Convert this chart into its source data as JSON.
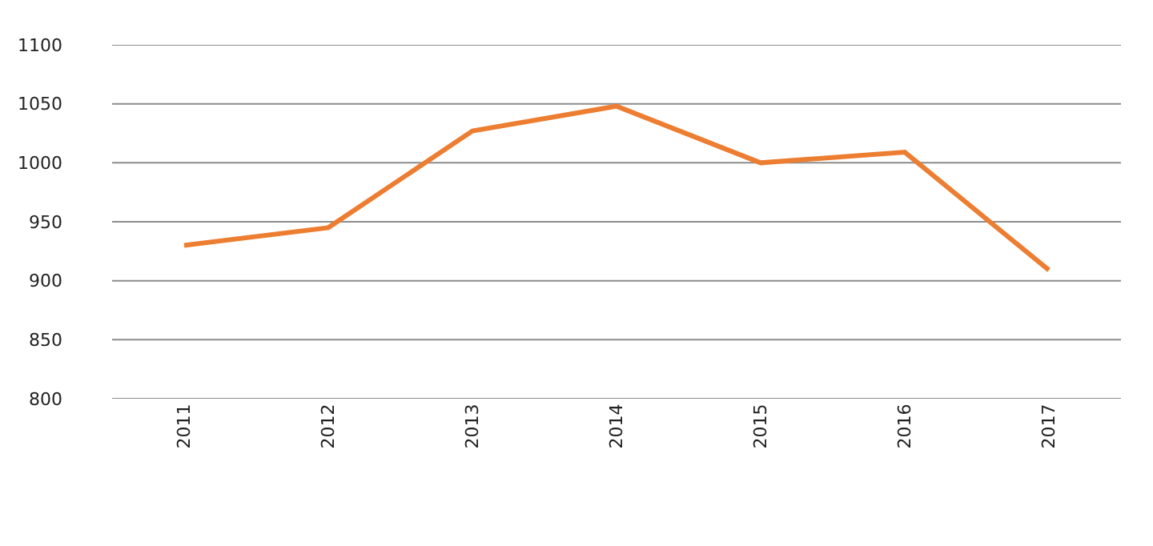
{
  "chart_data": {
    "type": "line",
    "categories": [
      "2011",
      "2012",
      "2013",
      "2014",
      "2015",
      "2016",
      "2017"
    ],
    "series": [
      {
        "color": "#ed7d31",
        "values": [
          930,
          945,
          1027,
          1048,
          1000,
          1009,
          909
        ]
      }
    ],
    "ylim": [
      800,
      1100
    ],
    "yticks": [
      800,
      850,
      900,
      950,
      1000,
      1050,
      1100
    ],
    "grid": "y",
    "marker": "none",
    "line_style": "solid"
  }
}
